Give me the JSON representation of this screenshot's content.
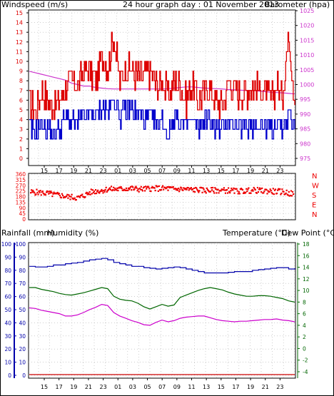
{
  "header": {
    "windspeed_label": "Windspeed (m/s)",
    "title": "24 hour graph day : 01 November 2013",
    "barometer_label": "Barometer (hpa)"
  },
  "lower_header": {
    "rainfall_label": "Rainfall (mm)",
    "humidity_label": "Humidity (%)",
    "temperature_label": "Temperature (°C)",
    "dewpoint_label": "Dew Point (°C)"
  },
  "direction_letters": [
    "N",
    "W",
    "S",
    "E",
    "N"
  ],
  "colors": {
    "wind": "#dd0000",
    "gust": "#dd0000",
    "avg_wind": "#0000cc",
    "barometer": "#cc33cc",
    "direction": "#ee0000",
    "humidity": "#0000aa",
    "rainfall": "#cc0000",
    "temperature": "#006600",
    "dewpoint": "#cc00cc"
  },
  "chart_data": [
    {
      "type": "line",
      "name": "wind",
      "x_ticks": [
        "15",
        "17",
        "19",
        "21",
        "23",
        "01",
        "03",
        "05",
        "07",
        "09",
        "11",
        "13",
        "15",
        "17",
        "19",
        "21",
        "23"
      ],
      "ylim_wind": [
        0,
        15
      ],
      "wind_ticks": [
        0,
        1,
        2,
        3,
        4,
        5,
        6,
        7,
        8,
        9,
        10,
        11,
        12,
        13,
        14,
        15
      ],
      "ylim_baro": [
        975,
        1025
      ],
      "baro_ticks": [
        975,
        980,
        985,
        990,
        995,
        1000,
        1005,
        1010,
        1015,
        1020,
        1025
      ],
      "grid": true,
      "series": [
        {
          "name": "",
          "values": [
            6.0,
            5.0,
            7.0,
            6.0,
            5.5,
            6.0,
            7.5,
            8.0,
            7.5,
            9.0,
            9.0,
            8.0,
            10.5,
            9.5,
            12.5,
            8.0,
            9.5,
            9.0,
            8.5,
            8.5,
            9.0,
            7.5,
            8.0,
            6.5,
            8.0,
            7.5,
            6.0,
            7.5,
            6.0,
            7.0,
            7.0,
            6.0,
            5.5,
            8.0,
            7.0,
            6.5,
            7.0,
            7.5,
            7.0,
            7.0,
            6.0,
            7.5,
            6.5,
            13.0,
            5.5
          ]
        },
        {
          "name": "",
          "values": [
            3.0,
            2.5,
            3.5,
            3.0,
            2.5,
            3.0,
            4.0,
            4.0,
            3.5,
            4.5,
            4.5,
            4.5,
            5.0,
            5.0,
            6.0,
            4.5,
            5.0,
            5.0,
            4.5,
            4.0,
            4.5,
            3.5,
            4.0,
            2.5,
            4.5,
            3.5,
            3.5,
            4.0,
            3.0,
            4.0,
            4.0,
            3.0,
            3.0,
            4.0,
            3.5,
            3.0,
            3.5,
            3.5,
            3.5,
            3.5,
            3.0,
            4.0,
            3.0,
            4.5,
            3.0
          ]
        },
        {
          "name": "",
          "values": [
            1004.5,
            1004,
            1003.5,
            1003,
            1002.5,
            1002,
            1001.5,
            1000.5,
            1000,
            999.5,
            999.5,
            999,
            998.8,
            998.6,
            998.5,
            998.5,
            998.5,
            998.5,
            998.5,
            998.5,
            998.5,
            998.5,
            998.5,
            998.6,
            998.8,
            999,
            999.2,
            999.2,
            999,
            998.8,
            998.7,
            998.6,
            998.5,
            998.3,
            998.2,
            998.1,
            998,
            998,
            997.8,
            997.6,
            997.4,
            997.3,
            997.2,
            997,
            996.8
          ]
        }
      ]
    },
    {
      "type": "scatter",
      "name": "wind direction",
      "ylim": [
        0,
        360
      ],
      "y_ticks": [
        0,
        45,
        90,
        135,
        180,
        225,
        270,
        315,
        360
      ],
      "mean_direction": [
        215,
        215,
        210,
        205,
        195,
        190,
        180,
        175,
        170,
        190,
        215,
        225,
        230,
        240,
        240,
        240,
        245,
        245,
        240,
        240,
        245,
        245,
        245,
        245,
        240,
        240,
        240,
        235,
        235,
        230,
        230,
        230,
        230,
        230,
        225,
        225,
        225,
        230,
        230,
        225,
        225,
        220,
        220,
        210,
        200
      ]
    },
    {
      "type": "line",
      "name": "lower",
      "ylim_left": [
        0,
        100
      ],
      "left_ticks": [
        0,
        10,
        20,
        30,
        40,
        50,
        60,
        70,
        80,
        90,
        100
      ],
      "ylim_right": [
        -4,
        18
      ],
      "right_ticks": [
        -4,
        -2,
        0,
        2,
        4,
        6,
        8,
        10,
        12,
        14,
        16,
        18
      ],
      "series": [
        {
          "name": "",
          "values": [
            83,
            82.5,
            82.5,
            83,
            84,
            84,
            85,
            85.5,
            86,
            87,
            88,
            88.5,
            89,
            88,
            86,
            85,
            84,
            83,
            83,
            82,
            81.5,
            81,
            81.5,
            82,
            82.5,
            82,
            81,
            80,
            79,
            78,
            78,
            78,
            78,
            78.5,
            79,
            79,
            79,
            80,
            80.5,
            81,
            81.5,
            82,
            82,
            81,
            81.5
          ]
        },
        {
          "name": "",
          "values": [
            0,
            0,
            0,
            0,
            0,
            0,
            0,
            0,
            0,
            0,
            0,
            0,
            0,
            0,
            0,
            0,
            0,
            0,
            0,
            0,
            0,
            0,
            0,
            0,
            0,
            0,
            0,
            0,
            0,
            0,
            0,
            0,
            0,
            0,
            0,
            0,
            0,
            0,
            0,
            0,
            0,
            0,
            0,
            0,
            0
          ]
        },
        {
          "name": "",
          "values": [
            10.5,
            10.5,
            10.2,
            10,
            9.8,
            9.5,
            9.3,
            9.2,
            9.4,
            9.6,
            9.9,
            10.2,
            10.5,
            10.3,
            9.0,
            8.5,
            8.3,
            8.2,
            7.8,
            7.2,
            6.8,
            7.2,
            7.6,
            7.3,
            7.5,
            8.8,
            9.2,
            9.6,
            10,
            10.3,
            10.5,
            10.3,
            10.1,
            9.7,
            9.4,
            9.2,
            9.0,
            9.0,
            9.1,
            9.1,
            9.0,
            8.8,
            8.6,
            8.2,
            8.0
          ]
        },
        {
          "name": "",
          "values": [
            7.0,
            6.9,
            6.6,
            6.4,
            6.2,
            6.0,
            5.6,
            5.6,
            5.8,
            6.2,
            6.7,
            7.1,
            7.6,
            7.4,
            6.2,
            5.6,
            5.2,
            4.8,
            4.5,
            4.1,
            4.0,
            4.5,
            4.9,
            4.6,
            4.8,
            5.2,
            5.4,
            5.5,
            5.6,
            5.6,
            5.3,
            5.0,
            4.8,
            4.7,
            4.6,
            4.7,
            4.7,
            4.8,
            4.9,
            5.0,
            5.0,
            5.1,
            4.9,
            4.8,
            4.6
          ]
        }
      ]
    }
  ]
}
